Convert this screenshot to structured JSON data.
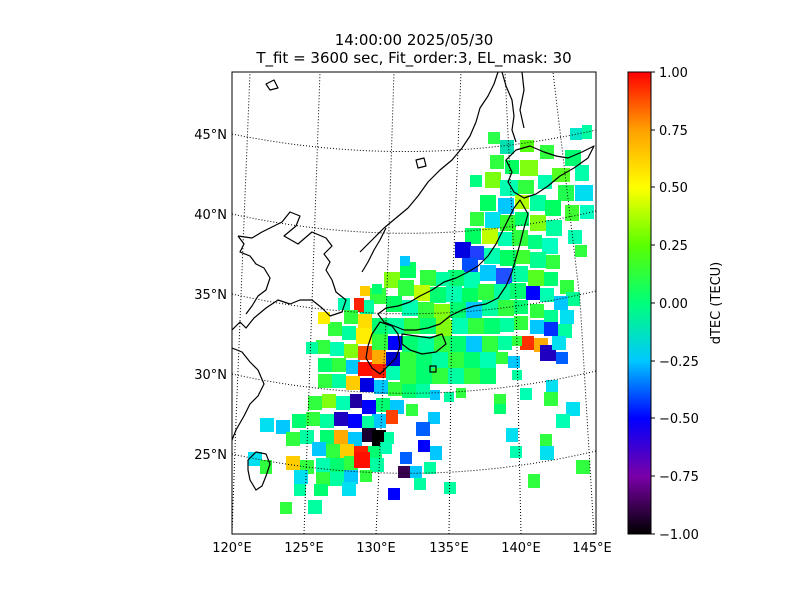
{
  "title": {
    "line1": "14:00:00 2025/05/30",
    "line2": "T_fit = 3600 sec, Fit_order:3, EL_mask: 30"
  },
  "map": {
    "region": "Japan and surroundings",
    "lon_range": [
      120,
      145
    ],
    "lat_range": [
      20,
      49
    ],
    "lat_labels": [
      "45°N",
      "40°N",
      "35°N",
      "30°N",
      "25°N"
    ],
    "lon_labels": [
      "120°E",
      "125°E",
      "130°E",
      "135°E",
      "140°E",
      "145°E"
    ],
    "graticule": "dotted",
    "coastline_color": "#000000"
  },
  "colorbar": {
    "label": "dTEC (TECU)",
    "range": [
      -1.0,
      1.0
    ],
    "ticks": [
      "1.00",
      "0.75",
      "0.50",
      "0.25",
      "0.00",
      "−0.25",
      "−0.50",
      "−0.75",
      "−1.00"
    ],
    "colormap": [
      "#000000",
      "#7a00a8",
      "#0000ff",
      "#00c8ff",
      "#00ff7a",
      "#5aff00",
      "#ffff00",
      "#ffa000",
      "#ff0000"
    ]
  }
}
